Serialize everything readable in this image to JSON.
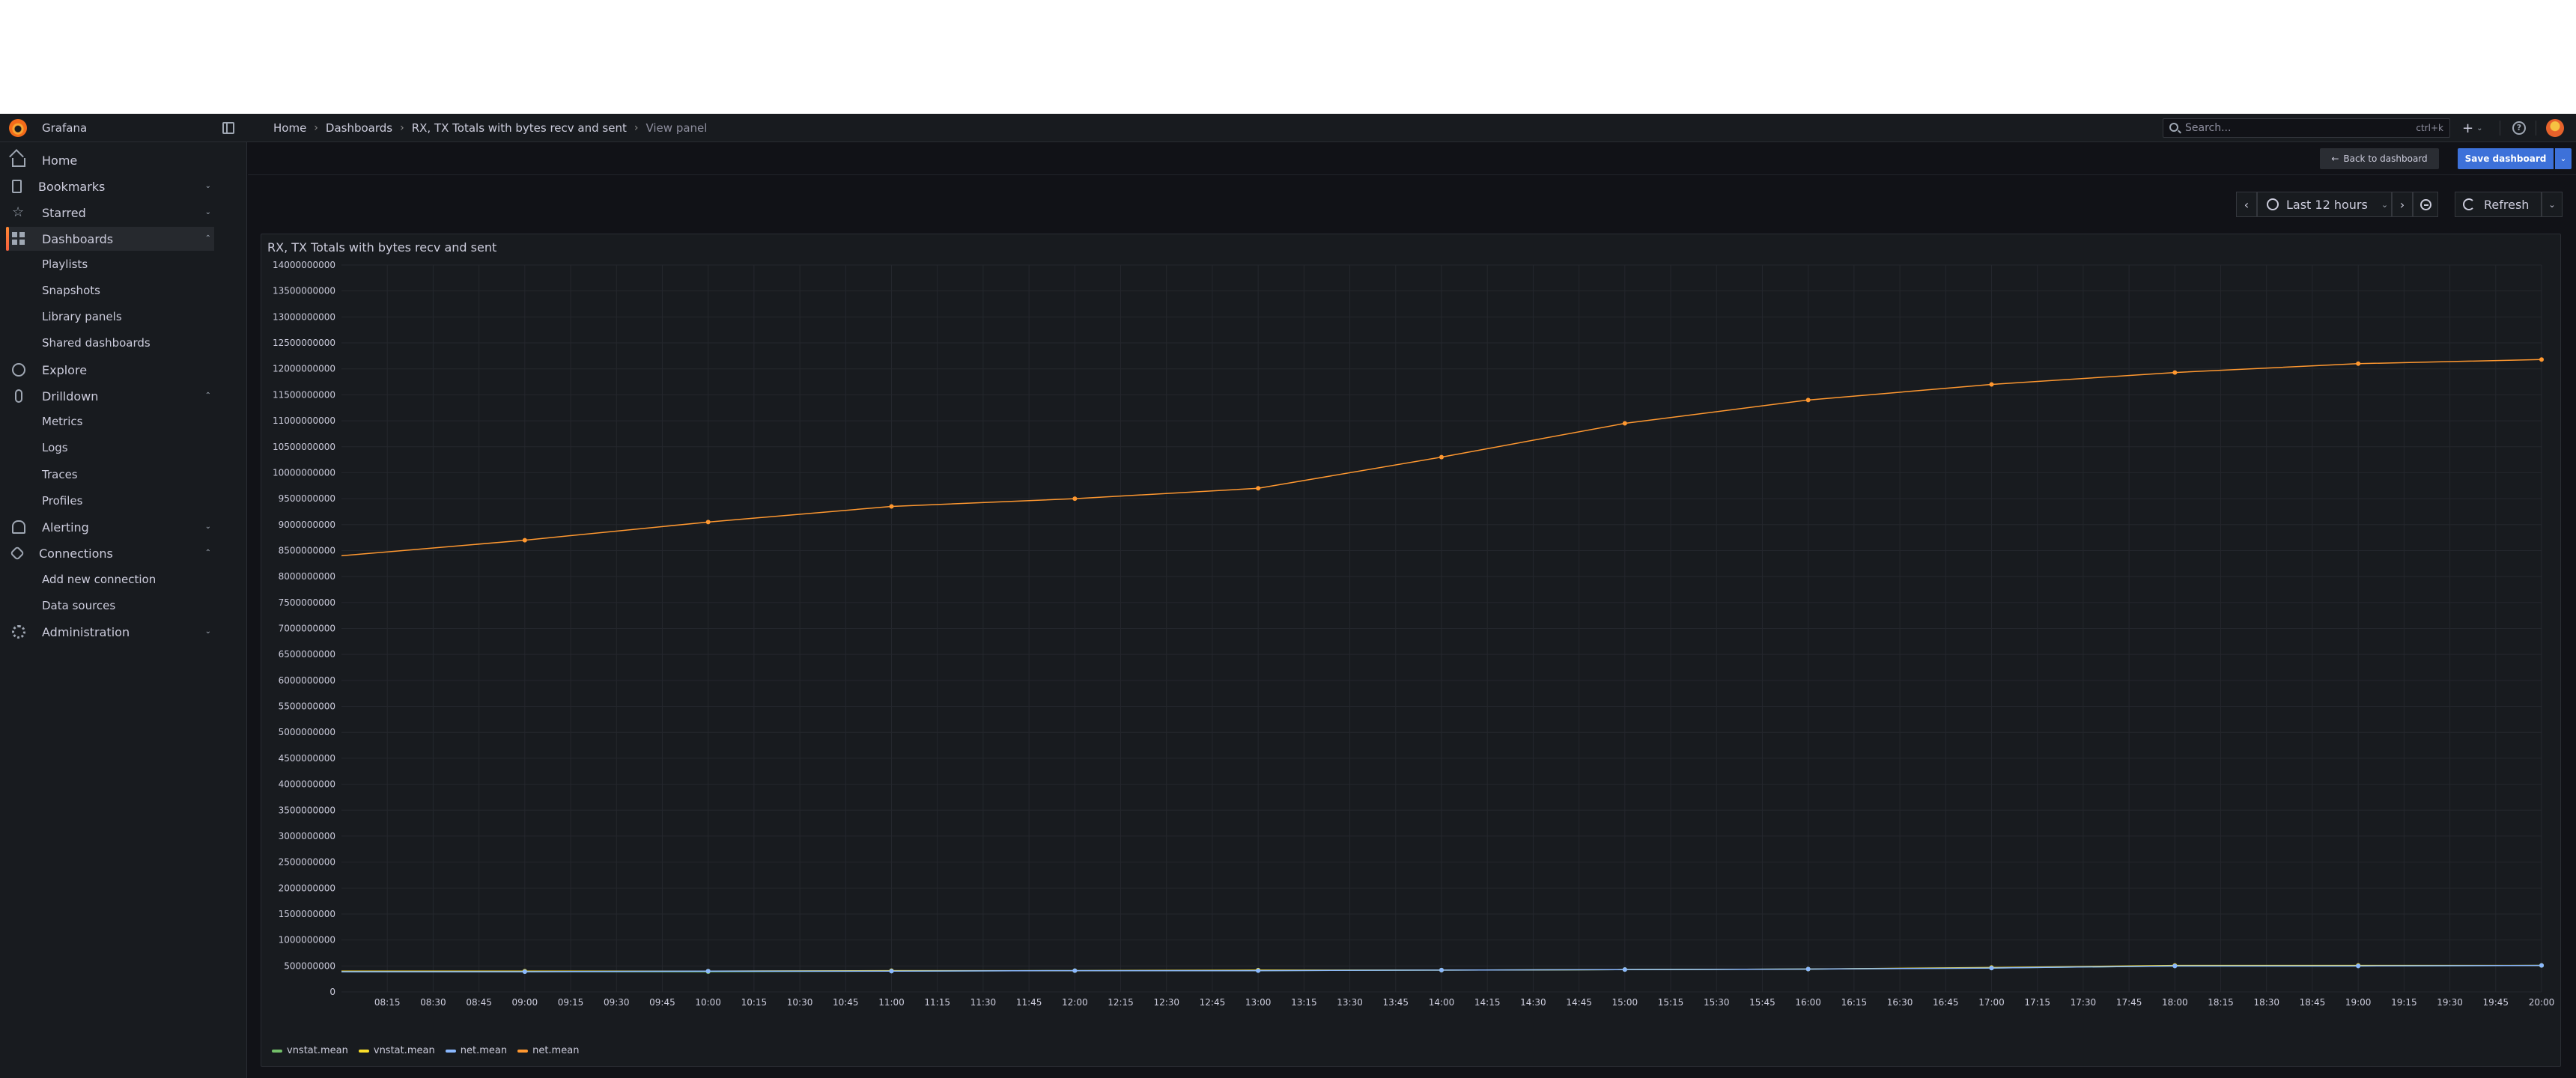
{
  "app": {
    "name": "Grafana",
    "brand_color": "#f46800"
  },
  "topbar": {
    "breadcrumb": [
      "Home",
      "Dashboards",
      "RX, TX Totals with bytes recv and sent",
      "View panel"
    ],
    "search_placeholder": "Search...",
    "search_shortcut": "ctrl+k",
    "plus_label": "+"
  },
  "sidebar": {
    "items": [
      {
        "label": "Home",
        "icon": "home-icon"
      },
      {
        "label": "Bookmarks",
        "icon": "bookmark-icon"
      },
      {
        "label": "Starred",
        "icon": "star-icon"
      },
      {
        "label": "Dashboards",
        "icon": "apps-icon",
        "active": true
      },
      {
        "label": "Playlists",
        "sub": true
      },
      {
        "label": "Snapshots",
        "sub": true
      },
      {
        "label": "Library panels",
        "sub": true
      },
      {
        "label": "Shared dashboards",
        "sub": true
      },
      {
        "label": "Explore",
        "icon": "compass-icon"
      },
      {
        "label": "Drilldown",
        "icon": "drilldown-icon"
      },
      {
        "label": "Metrics",
        "sub": true
      },
      {
        "label": "Logs",
        "sub": true
      },
      {
        "label": "Traces",
        "sub": true
      },
      {
        "label": "Profiles",
        "sub": true
      },
      {
        "label": "Alerting",
        "icon": "bell-icon"
      },
      {
        "label": "Connections",
        "icon": "link-icon"
      },
      {
        "label": "Add new connection",
        "sub": true
      },
      {
        "label": "Data sources",
        "sub": true
      },
      {
        "label": "Administration",
        "icon": "cog-icon"
      }
    ]
  },
  "toolbar": {
    "back_label": "Back to dashboard",
    "save_label": "Save dashboard"
  },
  "time": {
    "range_label": "Last 12 hours",
    "refresh_label": "Refresh"
  },
  "panel": {
    "title": "RX, TX Totals with bytes recv and sent"
  },
  "chart_data": {
    "type": "line",
    "title": "RX, TX Totals with bytes recv and sent",
    "xlabel": "",
    "ylabel": "",
    "x": [
      "09:00",
      "10:00",
      "11:00",
      "12:00",
      "13:00",
      "14:00",
      "15:00",
      "16:00",
      "17:00",
      "18:00",
      "19:00",
      "20:00"
    ],
    "x_start": "08:00",
    "x_start_value_net_mean": 8400000000,
    "x_ticks": [
      "08:15",
      "08:30",
      "08:45",
      "09:00",
      "09:15",
      "09:30",
      "09:45",
      "10:00",
      "10:15",
      "10:30",
      "10:45",
      "11:00",
      "11:15",
      "11:30",
      "11:45",
      "12:00",
      "12:15",
      "12:30",
      "12:45",
      "13:00",
      "13:15",
      "13:30",
      "13:45",
      "14:00",
      "14:15",
      "14:30",
      "14:45",
      "15:00",
      "15:15",
      "15:30",
      "15:45",
      "16:00",
      "16:15",
      "16:30",
      "16:45",
      "17:00",
      "17:15",
      "17:30",
      "17:45",
      "18:00",
      "18:15",
      "18:30",
      "18:45",
      "19:00",
      "19:15",
      "19:30",
      "19:45",
      "20:00"
    ],
    "y_ticks": [
      "0",
      "500000000",
      "1000000000",
      "1500000000",
      "2000000000",
      "2500000000",
      "3000000000",
      "3500000000",
      "4000000000",
      "4500000000",
      "5000000000",
      "5500000000",
      "6000000000",
      "6500000000",
      "7000000000",
      "7500000000",
      "8000000000",
      "8500000000",
      "9000000000",
      "9500000000",
      "10000000000",
      "10500000000",
      "11000000000",
      "11500000000",
      "12000000000",
      "12500000000",
      "13000000000",
      "13500000000",
      "14000000000"
    ],
    "ylim": [
      0,
      14000000000
    ],
    "grid": true,
    "legend_position": "bottom-left",
    "series": [
      {
        "name": "vnstat.mean",
        "color": "#73bf69",
        "values": [
          390000000,
          390000000,
          400000000,
          410000000,
          410000000,
          420000000,
          430000000,
          440000000,
          460000000,
          500000000,
          500000000,
          510000000
        ]
      },
      {
        "name": "vnstat.mean",
        "color": "#fade2a",
        "values": [
          400000000,
          400000000,
          410000000,
          410000000,
          420000000,
          420000000,
          430000000,
          440000000,
          470000000,
          510000000,
          510000000,
          510000000
        ]
      },
      {
        "name": "net.mean",
        "color": "#8ab8ff",
        "values": [
          390000000,
          400000000,
          400000000,
          410000000,
          410000000,
          420000000,
          430000000,
          440000000,
          460000000,
          500000000,
          500000000,
          510000000
        ]
      },
      {
        "name": "net.mean",
        "color": "#ff9830",
        "values": [
          8700000000,
          9050000000,
          9350000000,
          9500000000,
          9700000000,
          10300000000,
          10950000000,
          11400000000,
          11700000000,
          11930000000,
          12100000000,
          12180000000
        ]
      }
    ]
  }
}
